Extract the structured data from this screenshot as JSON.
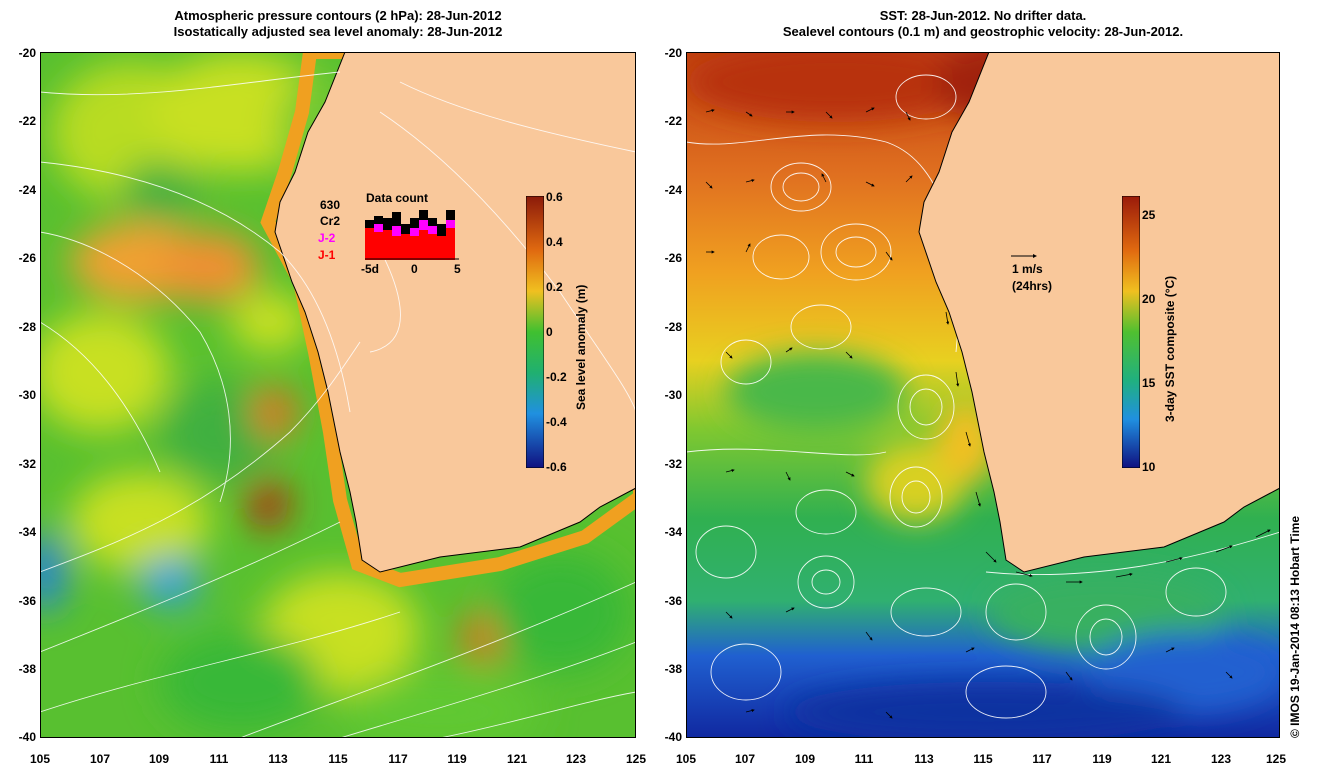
{
  "left_panel": {
    "title_line1": "Atmospheric pressure contours (2 hPa): 28-Jun-2012",
    "title_line2": "Isostatically adjusted sea level anomaly: 28-Jun-2012",
    "y_ticks": [
      "-20",
      "-22",
      "-24",
      "-26",
      "-28",
      "-30",
      "-32",
      "-34",
      "-36",
      "-38",
      "-40"
    ],
    "x_ticks": [
      "105",
      "107",
      "109",
      "111",
      "113",
      "115",
      "117",
      "119",
      "121",
      "123",
      "125"
    ],
    "colorbar": {
      "title": "Sea level anomaly (m)",
      "ticks": [
        "0.6",
        "0.4",
        "0.2",
        "0",
        "-0.2",
        "-0.4",
        "-0.6"
      ],
      "range": [
        -0.6,
        0.6
      ]
    },
    "inset": {
      "title": "Data count",
      "count": "630",
      "missions": [
        {
          "label": "Cr2",
          "color": "#000000"
        },
        {
          "label": "J-2",
          "color": "#ff00ff"
        },
        {
          "label": "J-1",
          "color": "#ff0000"
        }
      ],
      "x_ticks": [
        "-5d",
        "0",
        "5"
      ]
    }
  },
  "right_panel": {
    "title_line1": "SST: 28-Jun-2012. No drifter data.",
    "title_line2": "Sealevel contours (0.1 m) and geostrophic velocity: 28-Jun-2012.",
    "y_ticks": [
      "-20",
      "-22",
      "-24",
      "-26",
      "-28",
      "-30",
      "-32",
      "-34",
      "-36",
      "-38",
      "-40"
    ],
    "x_ticks": [
      "105",
      "107",
      "109",
      "111",
      "113",
      "115",
      "117",
      "119",
      "121",
      "123",
      "125"
    ],
    "colorbar": {
      "title": "3-day SST composite (°C)",
      "ticks": [
        "25",
        "20",
        "15",
        "10"
      ],
      "range": [
        10,
        26
      ]
    },
    "velocity_key": {
      "line1": "1 m/s",
      "line2": "(24hrs)"
    }
  },
  "credit": "© IMOS 19-Jan-2014 08:13 Hobart Time",
  "colors": {
    "land": "#f9c89b",
    "ocean_green": "#4ec22a",
    "ocean_yellow": "#c8e020",
    "ocean_orange": "#f0a020",
    "sst_red": "#c84010",
    "sst_blue": "#1040c0"
  }
}
